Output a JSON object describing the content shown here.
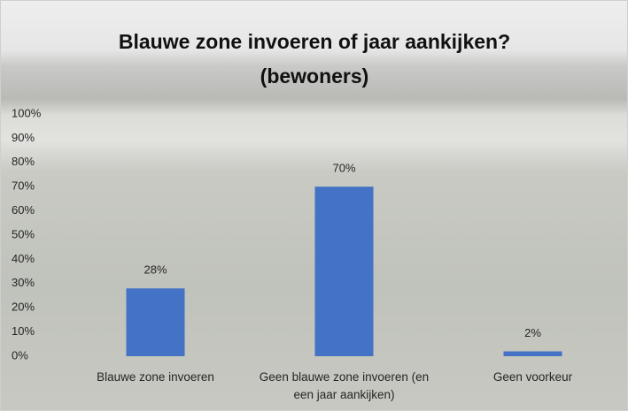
{
  "chart_data": {
    "type": "bar",
    "title": [
      "Blauwe zone invoeren of jaar aankijken?",
      "(bewoners)"
    ],
    "categories": [
      "Blauwe zone invoeren",
      "Geen blauwe zone invoeren (en een jaar aankijken)",
      "Geen voorkeur"
    ],
    "values": [
      28,
      70,
      2
    ],
    "value_labels": [
      "28%",
      "70%",
      "2%"
    ],
    "color": "#4472c4",
    "ylim": [
      0,
      100
    ],
    "yticks": [
      {
        "value": 0,
        "label": "0%"
      },
      {
        "value": 10,
        "label": "10%"
      },
      {
        "value": 20,
        "label": "20%"
      },
      {
        "value": 30,
        "label": "30%"
      },
      {
        "value": 40,
        "label": "40%"
      },
      {
        "value": 50,
        "label": "50%"
      },
      {
        "value": 60,
        "label": "60%"
      },
      {
        "value": 70,
        "label": "70%"
      },
      {
        "value": 80,
        "label": "80%"
      },
      {
        "value": 90,
        "label": "90%"
      },
      {
        "value": 100,
        "label": "100%"
      }
    ],
    "grid": false
  }
}
